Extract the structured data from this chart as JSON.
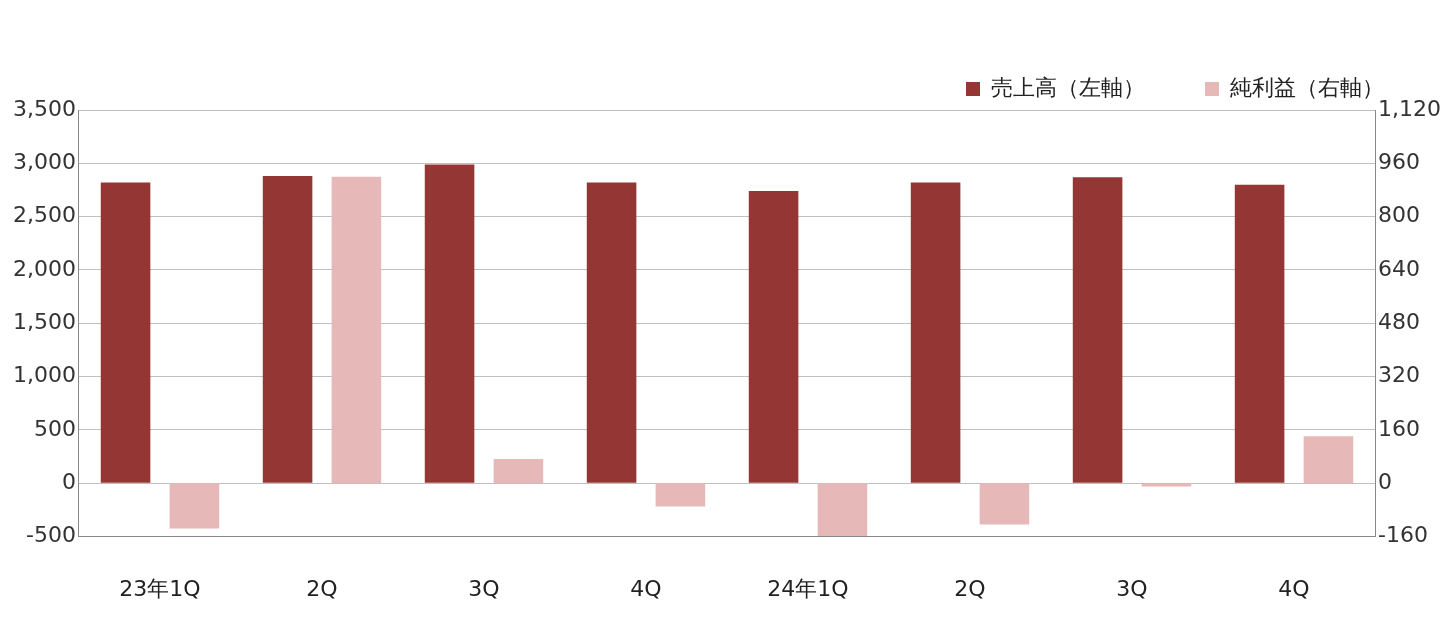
{
  "chart_data": {
    "type": "bar",
    "categories": [
      "23年1Q",
      "2Q",
      "3Q",
      "4Q",
      "24年1Q",
      "2Q",
      "3Q",
      "4Q"
    ],
    "series": [
      {
        "name": "売上高（左軸）",
        "color": "#943634",
        "values": [
          2820,
          2880,
          2990,
          2820,
          2740,
          2820,
          2870,
          2800
        ]
      },
      {
        "name": "純利益（右軸）",
        "color": "#e6b9b8",
        "axis": "y2",
        "values": [
          -136,
          920,
          73,
          -70,
          -158,
          -124,
          -10,
          141
        ]
      }
    ],
    "ylim": [
      -500,
      3500
    ],
    "yticks": [
      -500,
      {
        "value": 0,
        "label": "0"
      },
      {
        "value": 500,
        "label": "500"
      },
      {
        "value": 1000,
        "label": "1,000"
      },
      {
        "value": 1500,
        "label": "1,500"
      },
      {
        "value": 2000,
        "label": "2,000"
      },
      {
        "value": 2500,
        "label": "2,500"
      },
      {
        "value": 3000,
        "label": "3,000"
      },
      {
        "value": 3500,
        "label": "3,500"
      }
    ],
    "y2lim": [
      -160,
      1120
    ],
    "y2ticks": [
      -160,
      0,
      160,
      320,
      480,
      640,
      800,
      960,
      {
        "value": 1120,
        "label": "1,120"
      }
    ],
    "grid": "y",
    "legend": "top right"
  }
}
